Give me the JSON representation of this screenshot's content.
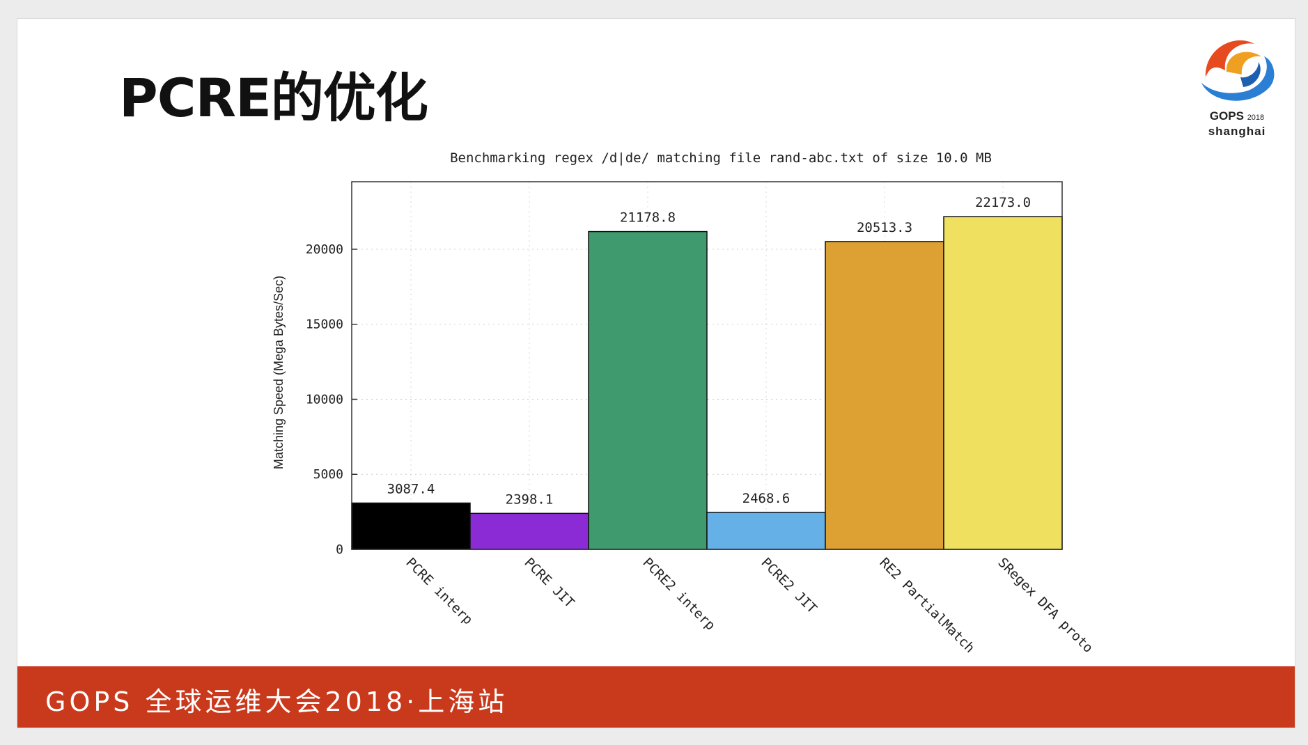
{
  "slide": {
    "title": "PCRE的优化",
    "logo": {
      "brand": "GOPS",
      "year": "2018",
      "city": "shanghai"
    },
    "footer_text": "GOPS 全球运维大会2018·上海站",
    "footer_color": "#c9391c"
  },
  "chart_data": {
    "type": "bar",
    "title": "Benchmarking regex /d|de/ matching file rand-abc.txt of size 10.0 MB",
    "xlabel": "",
    "ylabel": "Matching Speed (Mega Bytes/Sec)",
    "ylim": [
      0,
      24500
    ],
    "yticks": [
      0,
      5000,
      10000,
      15000,
      20000
    ],
    "grid": true,
    "categories": [
      "PCRE interp",
      "PCRE JIT",
      "PCRE2 interp",
      "PCRE2 JIT",
      "RE2 PartialMatch",
      "SRegex DFA proto"
    ],
    "values": [
      3087.4,
      2398.1,
      21178.8,
      2468.6,
      20513.3,
      22173.0
    ],
    "labels": [
      "3087.4",
      "2398.1",
      "21178.8",
      "2468.6",
      "20513.3",
      "22173.0"
    ],
    "colors": [
      "#000000",
      "#8a2bd6",
      "#3f9a6e",
      "#66b0e8",
      "#dda033",
      "#efe060"
    ]
  }
}
